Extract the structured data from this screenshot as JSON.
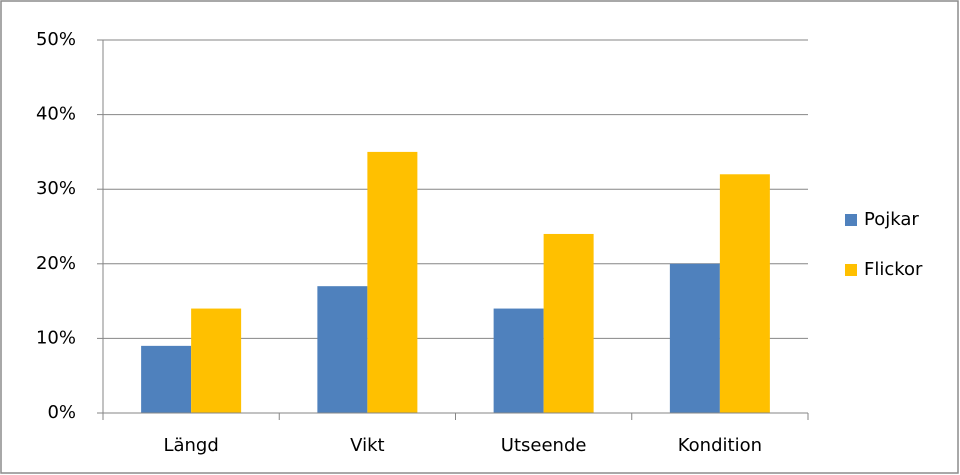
{
  "chart_data": {
    "type": "bar",
    "categories": [
      "Längd",
      "Vikt",
      "Utseende",
      "Kondition"
    ],
    "series": [
      {
        "name": "Pojkar",
        "color": "#4f81bd",
        "values": [
          9,
          17,
          14,
          20
        ]
      },
      {
        "name": "Flickor",
        "color": "#ffc000",
        "values": [
          14,
          35,
          24,
          32
        ]
      }
    ],
    "ylim": [
      0,
      50
    ],
    "yticks": [
      {
        "value": 0,
        "label": "0%"
      },
      {
        "value": 10,
        "label": "10%"
      },
      {
        "value": 20,
        "label": "20%"
      },
      {
        "value": 30,
        "label": "30%"
      },
      {
        "value": 40,
        "label": "40%"
      },
      {
        "value": 50,
        "label": "50%"
      }
    ],
    "grid": true,
    "legend": "right"
  }
}
